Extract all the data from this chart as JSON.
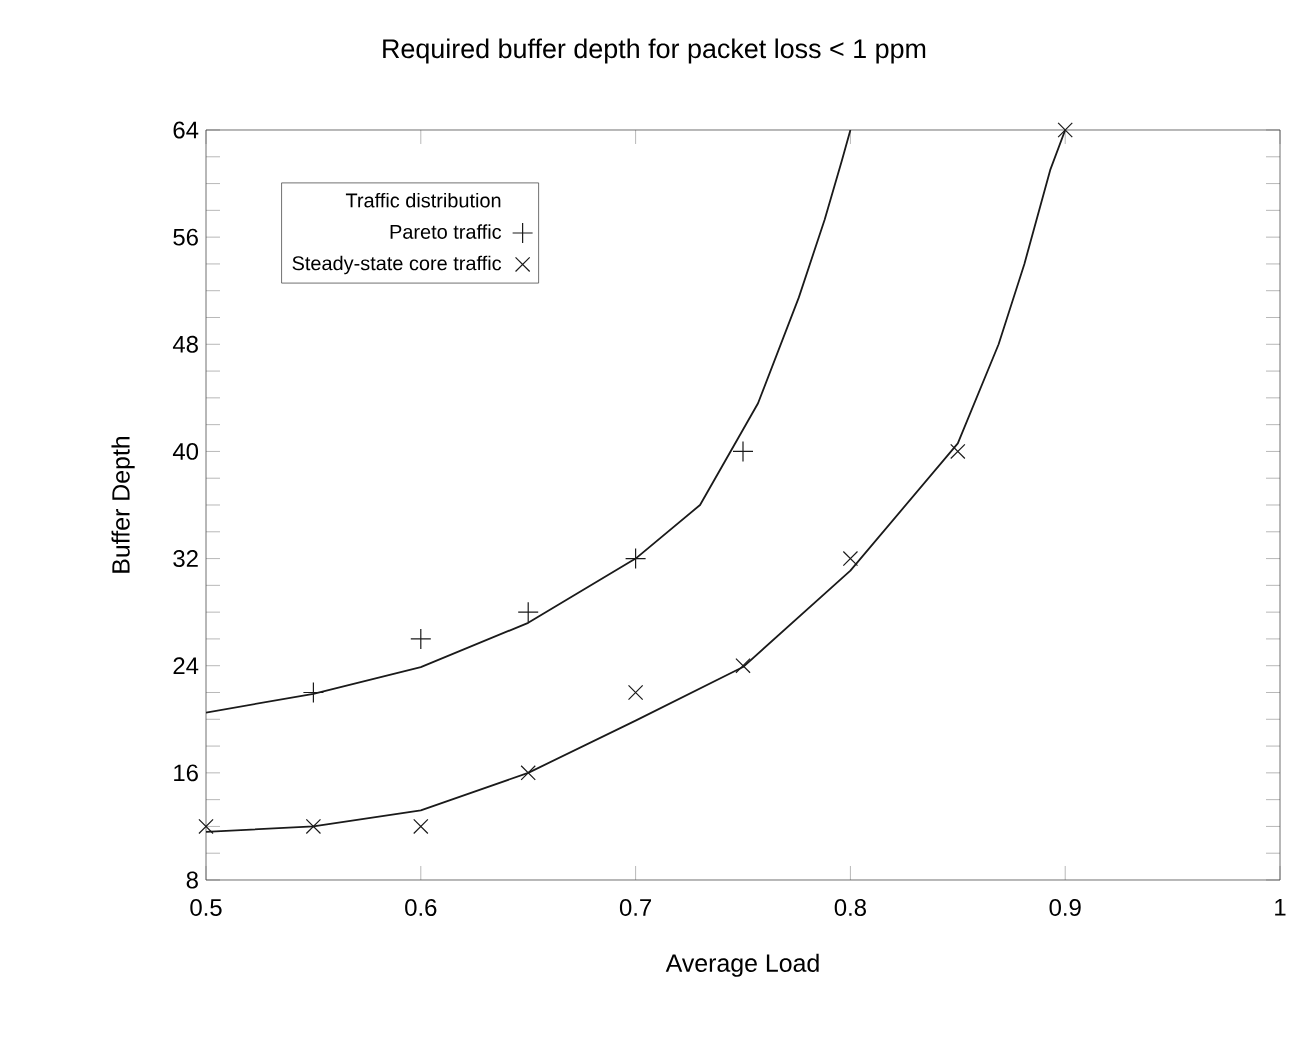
{
  "chart_data": {
    "type": "scatter",
    "title": "Required buffer depth for packet loss < 1 ppm",
    "xlabel": "Average Load",
    "ylabel": "Buffer Depth",
    "legend_title": "Traffic distribution",
    "xlim": [
      0.5,
      1
    ],
    "ylim": [
      8,
      64
    ],
    "xticks": [
      {
        "value": 0.5,
        "label": "0.5"
      },
      {
        "value": 0.6,
        "label": "0.6"
      },
      {
        "value": 0.7,
        "label": "0.7"
      },
      {
        "value": 0.8,
        "label": "0.8"
      },
      {
        "value": 0.9,
        "label": "0.9"
      },
      1
    ],
    "yticks": [
      8,
      {
        "value": 10,
        "label": null
      },
      {
        "value": 12,
        "label": null
      },
      {
        "value": 14,
        "label": null
      },
      16,
      {
        "value": 18,
        "label": null
      },
      {
        "value": 20,
        "label": null
      },
      {
        "value": 22,
        "label": null
      },
      24,
      {
        "value": 26,
        "label": null
      },
      {
        "value": 28,
        "label": null
      },
      {
        "value": 30,
        "label": null
      },
      32,
      {
        "value": 34,
        "label": null
      },
      {
        "value": 36,
        "label": null
      },
      {
        "value": 38,
        "label": null
      },
      40,
      {
        "value": 42,
        "label": null
      },
      {
        "value": 44,
        "label": null
      },
      {
        "value": 46,
        "label": null
      },
      48,
      {
        "value": 50,
        "label": null
      },
      {
        "value": 52,
        "label": null
      },
      {
        "value": 54,
        "label": null
      },
      56,
      {
        "value": 58,
        "label": null
      },
      {
        "value": 60,
        "label": null
      },
      {
        "value": 62,
        "label": null
      },
      64
    ],
    "legend": "top left",
    "grid": false,
    "series": [
      {
        "name": "Pareto traffic",
        "marker": "plus",
        "color": "#1a1a1a",
        "x": [
          0.55,
          0.6,
          0.65,
          0.7,
          0.75
        ],
        "values": [
          22,
          26,
          28,
          32,
          40
        ]
      },
      {
        "name": "Steady-state core traffic",
        "marker": "cross",
        "color": "#1a1a1a",
        "x": [
          0.5,
          0.55,
          0.6,
          0.65,
          0.7,
          0.75,
          0.8,
          0.85,
          0.9
        ],
        "values": [
          12,
          12,
          12,
          16,
          22,
          24,
          32,
          40,
          64
        ]
      },
      {
        "type": "line",
        "marker": "none",
        "line_style": "solid",
        "color": "#1a1a1a",
        "x": [
          0.5,
          0.55,
          0.6,
          0.65,
          0.7,
          0.73,
          0.757,
          0.776,
          0.788,
          0.796,
          0.8
        ],
        "values": [
          20.5,
          21.9,
          23.9,
          27.2,
          32,
          36,
          43.6,
          51.5,
          57.3,
          61.7,
          64
        ]
      },
      {
        "type": "line",
        "marker": "none",
        "line_style": "solid",
        "color": "#1a1a1a",
        "x": [
          0.5,
          0.55,
          0.6,
          0.65,
          0.7,
          0.75,
          0.8,
          0.85,
          0.869,
          0.881,
          0.893,
          0.9
        ],
        "values": [
          11.6,
          12,
          13.2,
          16,
          19.9,
          23.9,
          31.1,
          40.6,
          48,
          54,
          61,
          64
        ]
      }
    ]
  }
}
